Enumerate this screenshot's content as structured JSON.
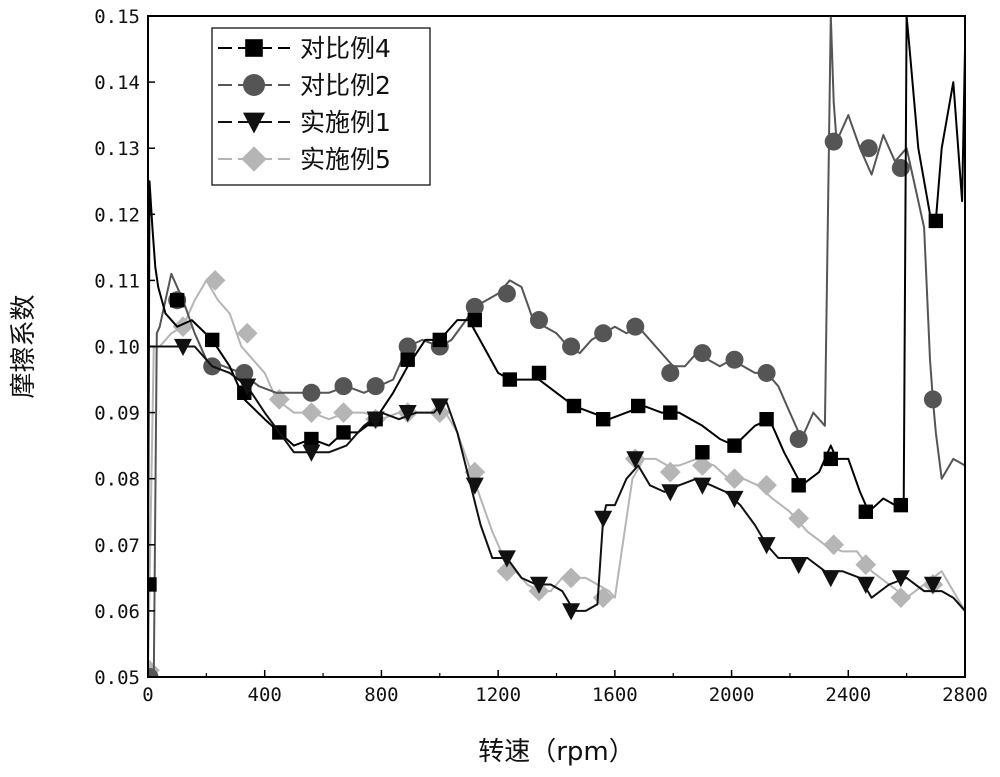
{
  "chart_data": {
    "type": "line",
    "xlabel": "转速（rpm）",
    "ylabel": "摩擦系数",
    "xlim": [
      0,
      2800
    ],
    "ylim": [
      0.05,
      0.15
    ],
    "xticks": [
      0,
      400,
      800,
      1200,
      1600,
      2000,
      2400,
      2800
    ],
    "xtick_labels": [
      "0",
      "400",
      "800",
      "1200",
      "1600",
      "2000",
      "2400",
      "2800"
    ],
    "yticks": [
      0.05,
      0.06,
      0.07,
      0.08,
      0.09,
      0.1,
      0.11,
      0.12,
      0.13,
      0.14,
      0.15
    ],
    "ytick_labels": [
      "0.05",
      "0.06",
      "0.07",
      "0.08",
      "0.09",
      "0.10",
      "0.11",
      "0.12",
      "0.13",
      "0.14",
      "0.15"
    ],
    "grid": false,
    "legend_position": "top-left",
    "series": [
      {
        "name": "对比例4",
        "marker": "square",
        "color": "#000000",
        "x": [
          0,
          5,
          15,
          25,
          35,
          60,
          100,
          150,
          220,
          280,
          330,
          400,
          450,
          500,
          560,
          620,
          670,
          720,
          780,
          840,
          890,
          950,
          1000,
          1060,
          1100,
          1150,
          1200,
          1240,
          1300,
          1340,
          1400,
          1460,
          1520,
          1580,
          1640,
          1700,
          1760,
          1820,
          1900,
          1960,
          2010,
          2080,
          2130,
          2180,
          2240,
          2300,
          2340,
          2360,
          2400,
          2440,
          2470,
          2520,
          2560,
          2590,
          2600,
          2610,
          2640,
          2680,
          2700,
          2720,
          2760,
          2790,
          2800
        ],
        "y": [
          0.064,
          0.125,
          0.118,
          0.112,
          0.109,
          0.105,
          0.103,
          0.104,
          0.101,
          0.097,
          0.092,
          0.089,
          0.087,
          0.085,
          0.086,
          0.085,
          0.087,
          0.087,
          0.089,
          0.093,
          0.097,
          0.101,
          0.101,
          0.104,
          0.104,
          0.1,
          0.096,
          0.095,
          0.095,
          0.095,
          0.093,
          0.091,
          0.09,
          0.089,
          0.09,
          0.091,
          0.09,
          0.09,
          0.088,
          0.086,
          0.085,
          0.088,
          0.089,
          0.084,
          0.079,
          0.081,
          0.085,
          0.083,
          0.083,
          0.078,
          0.075,
          0.077,
          0.076,
          0.076,
          0.15,
          0.145,
          0.13,
          0.12,
          0.119,
          0.13,
          0.14,
          0.122,
          0.145
        ],
        "marker_x": [
          5,
          100,
          220,
          330,
          450,
          560,
          670,
          780,
          890,
          1000,
          1120,
          1240,
          1340,
          1460,
          1560,
          1680,
          1790,
          1900,
          2010,
          2120,
          2230,
          2340,
          2460,
          2580,
          2700
        ],
        "marker_y": [
          0.064,
          0.107,
          0.101,
          0.093,
          0.087,
          0.086,
          0.087,
          0.089,
          0.098,
          0.101,
          0.104,
          0.095,
          0.096,
          0.091,
          0.089,
          0.091,
          0.09,
          0.084,
          0.085,
          0.089,
          0.079,
          0.083,
          0.075,
          0.076,
          0.119
        ]
      },
      {
        "name": "对比例2",
        "marker": "circle",
        "color": "#555555",
        "x": [
          0,
          10,
          20,
          30,
          40,
          60,
          80,
          120,
          160,
          200,
          260,
          320,
          380,
          440,
          500,
          560,
          620,
          680,
          740,
          790,
          840,
          890,
          940,
          1000,
          1040,
          1090,
          1120,
          1160,
          1200,
          1240,
          1280,
          1320,
          1360,
          1400,
          1440,
          1480,
          1520,
          1560,
          1600,
          1640,
          1680,
          1720,
          1760,
          1800,
          1840,
          1880,
          1920,
          1960,
          2000,
          2040,
          2080,
          2120,
          2160,
          2200,
          2240,
          2280,
          2320,
          2340,
          2350,
          2360,
          2400,
          2440,
          2480,
          2520,
          2560,
          2600,
          2640,
          2660,
          2680,
          2690,
          2700,
          2720,
          2760,
          2800
        ],
        "y": [
          0.05,
          0.05,
          0.05,
          0.102,
          0.103,
          0.107,
          0.111,
          0.107,
          0.102,
          0.098,
          0.097,
          0.096,
          0.094,
          0.093,
          0.093,
          0.093,
          0.093,
          0.094,
          0.093,
          0.094,
          0.095,
          0.1,
          0.101,
          0.1,
          0.101,
          0.104,
          0.106,
          0.107,
          0.108,
          0.11,
          0.109,
          0.104,
          0.103,
          0.102,
          0.1,
          0.099,
          0.101,
          0.102,
          0.103,
          0.102,
          0.103,
          0.101,
          0.099,
          0.097,
          0.097,
          0.099,
          0.098,
          0.097,
          0.098,
          0.097,
          0.096,
          0.096,
          0.094,
          0.09,
          0.086,
          0.09,
          0.088,
          0.15,
          0.137,
          0.131,
          0.135,
          0.13,
          0.126,
          0.132,
          0.128,
          0.13,
          0.122,
          0.118,
          0.098,
          0.092,
          0.087,
          0.08,
          0.083,
          0.082
        ],
        "marker_x": [
          5,
          100,
          220,
          330,
          560,
          670,
          780,
          890,
          1000,
          1120,
          1230,
          1340,
          1450,
          1560,
          1670,
          1790,
          1900,
          2010,
          2120,
          2230,
          2350,
          2470,
          2580,
          2690
        ],
        "marker_y": [
          0.05,
          0.107,
          0.097,
          0.096,
          0.093,
          0.094,
          0.094,
          0.1,
          0.1,
          0.106,
          0.108,
          0.104,
          0.1,
          0.102,
          0.103,
          0.096,
          0.099,
          0.098,
          0.096,
          0.086,
          0.131,
          0.13,
          0.127,
          0.092
        ]
      },
      {
        "name": "实施例1",
        "marker": "triangle-down",
        "color": "#111111",
        "x": [
          0,
          40,
          100,
          160,
          220,
          280,
          340,
          400,
          450,
          500,
          560,
          620,
          680,
          740,
          800,
          860,
          920,
          980,
          1020,
          1060,
          1100,
          1140,
          1180,
          1230,
          1280,
          1330,
          1380,
          1420,
          1460,
          1500,
          1540,
          1560,
          1570,
          1600,
          1640,
          1680,
          1720,
          1770,
          1820,
          1880,
          1930,
          1980,
          2030,
          2080,
          2120,
          2160,
          2220,
          2260,
          2320,
          2380,
          2440,
          2480,
          2540,
          2600,
          2660,
          2720,
          2760,
          2800
        ],
        "y": [
          0.1,
          0.1,
          0.1,
          0.1,
          0.097,
          0.096,
          0.094,
          0.09,
          0.087,
          0.084,
          0.084,
          0.084,
          0.085,
          0.088,
          0.09,
          0.089,
          0.09,
          0.09,
          0.092,
          0.087,
          0.08,
          0.073,
          0.068,
          0.068,
          0.065,
          0.064,
          0.064,
          0.063,
          0.06,
          0.06,
          0.061,
          0.074,
          0.076,
          0.076,
          0.08,
          0.082,
          0.079,
          0.078,
          0.079,
          0.08,
          0.079,
          0.078,
          0.076,
          0.073,
          0.07,
          0.068,
          0.068,
          0.068,
          0.066,
          0.066,
          0.065,
          0.062,
          0.064,
          0.065,
          0.063,
          0.063,
          0.062,
          0.06
        ],
        "marker_x": [
          120,
          340,
          560,
          780,
          890,
          1000,
          1120,
          1230,
          1340,
          1450,
          1560,
          1670,
          1790,
          1900,
          2010,
          2120,
          2230,
          2340,
          2460,
          2580,
          2690
        ],
        "marker_y": [
          0.1,
          0.094,
          0.084,
          0.089,
          0.09,
          0.091,
          0.079,
          0.068,
          0.064,
          0.06,
          0.074,
          0.083,
          0.078,
          0.079,
          0.077,
          0.07,
          0.067,
          0.065,
          0.064,
          0.065,
          0.064
        ]
      },
      {
        "name": "实施例5",
        "marker": "diamond",
        "color": "#b5b5b5",
        "x": [
          0,
          20,
          40,
          80,
          120,
          160,
          200,
          240,
          280,
          320,
          360,
          400,
          440,
          500,
          560,
          620,
          680,
          740,
          800,
          860,
          920,
          980,
          1020,
          1060,
          1100,
          1140,
          1180,
          1220,
          1260,
          1300,
          1340,
          1380,
          1420,
          1460,
          1500,
          1540,
          1580,
          1600,
          1630,
          1660,
          1700,
          1740,
          1780,
          1820,
          1880,
          1940,
          1990,
          2040,
          2090,
          2140,
          2200,
          2260,
          2320,
          2380,
          2430,
          2480,
          2540,
          2600,
          2660,
          2720,
          2760,
          2800
        ],
        "y": [
          0.051,
          0.1,
          0.1,
          0.102,
          0.103,
          0.107,
          0.11,
          0.107,
          0.105,
          0.1,
          0.098,
          0.096,
          0.092,
          0.09,
          0.09,
          0.089,
          0.09,
          0.09,
          0.089,
          0.09,
          0.09,
          0.09,
          0.09,
          0.087,
          0.082,
          0.077,
          0.072,
          0.068,
          0.066,
          0.064,
          0.063,
          0.063,
          0.065,
          0.065,
          0.065,
          0.064,
          0.063,
          0.062,
          0.071,
          0.08,
          0.083,
          0.083,
          0.082,
          0.082,
          0.083,
          0.082,
          0.08,
          0.08,
          0.079,
          0.077,
          0.075,
          0.072,
          0.07,
          0.069,
          0.069,
          0.066,
          0.064,
          0.062,
          0.064,
          0.066,
          0.063,
          0.06
        ],
        "marker_x": [
          5,
          120,
          230,
          340,
          450,
          560,
          670,
          780,
          890,
          1000,
          1120,
          1230,
          1340,
          1450,
          1560,
          1670,
          1790,
          1900,
          2010,
          2120,
          2230,
          2350,
          2460,
          2580,
          2690
        ],
        "marker_y": [
          0.051,
          0.103,
          0.11,
          0.102,
          0.092,
          0.09,
          0.09,
          0.089,
          0.09,
          0.09,
          0.081,
          0.066,
          0.063,
          0.065,
          0.062,
          0.083,
          0.081,
          0.082,
          0.08,
          0.079,
          0.074,
          0.07,
          0.067,
          0.062,
          0.064
        ]
      }
    ]
  }
}
